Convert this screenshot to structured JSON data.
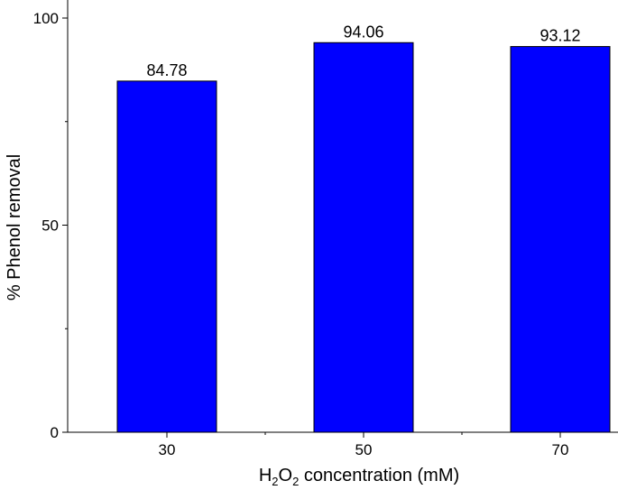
{
  "chart_data": {
    "type": "bar",
    "categories": [
      "30",
      "50",
      "70"
    ],
    "values": [
      84.78,
      94.06,
      93.12
    ],
    "data_labels": [
      "84.78",
      "94.06",
      "93.12"
    ],
    "title": "",
    "xlabel": {
      "parts": [
        {
          "text": "H",
          "sub": false
        },
        {
          "text": "2",
          "sub": true
        },
        {
          "text": "O",
          "sub": false
        },
        {
          "text": "2",
          "sub": true
        },
        {
          "text": " concentration (mM)",
          "sub": false
        }
      ]
    },
    "ylabel": "% Phenol removal",
    "ylim": [
      0,
      100
    ],
    "yticks": [
      0,
      50,
      100
    ],
    "bar_color": "#0000ff",
    "grid": false,
    "legend": "none"
  }
}
